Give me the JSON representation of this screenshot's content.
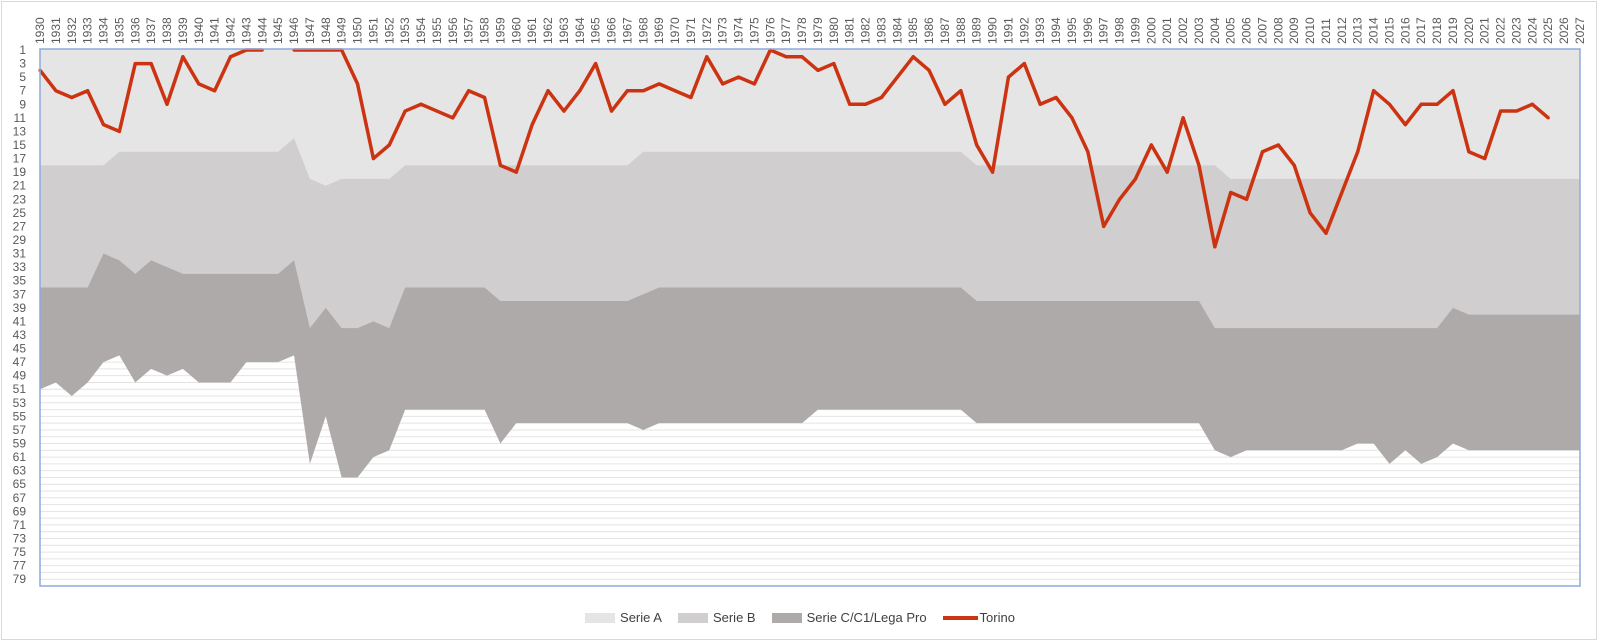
{
  "colors": {
    "serie_a": "#e6e5e5",
    "serie_b": "#d0cece",
    "serie_c": "#aeaaaa",
    "torino": "#cc3311",
    "gridline": "#e4e4e4",
    "axis_border": "#8eaadb",
    "text": "#595959"
  },
  "chart_data": {
    "type": "area",
    "title": "",
    "xlabel": "",
    "ylabel": "",
    "x_tick_labels": [
      1930,
      1931,
      1932,
      1933,
      1934,
      1935,
      1936,
      1937,
      1938,
      1939,
      1940,
      1941,
      1942,
      1943,
      1944,
      1945,
      1946,
      1947,
      1948,
      1949,
      1950,
      1951,
      1952,
      1953,
      1954,
      1955,
      1956,
      1957,
      1958,
      1959,
      1960,
      1961,
      1962,
      1963,
      1964,
      1965,
      1966,
      1967,
      1968,
      1969,
      1970,
      1971,
      1972,
      1973,
      1974,
      1975,
      1976,
      1977,
      1978,
      1979,
      1980,
      1981,
      1982,
      1983,
      1984,
      1985,
      1986,
      1987,
      1988,
      1989,
      1990,
      1991,
      1992,
      1993,
      1994,
      1995,
      1996,
      1997,
      1998,
      1999,
      2000,
      2001,
      2002,
      2003,
      2004,
      2005,
      2006,
      2007,
      2008,
      2009,
      2010,
      2011,
      2012,
      2013,
      2014,
      2015,
      2016,
      2017,
      2018,
      2019,
      2020,
      2021,
      2022,
      2023,
      2024,
      2025,
      2026,
      2027
    ],
    "y_tick_labels": [
      1,
      3,
      5,
      7,
      9,
      11,
      13,
      15,
      17,
      19,
      21,
      23,
      25,
      27,
      29,
      31,
      33,
      35,
      37,
      39,
      41,
      43,
      45,
      47,
      49,
      51,
      53,
      55,
      57,
      59,
      61,
      63,
      65,
      67,
      69,
      71,
      73,
      75,
      77,
      79
    ],
    "y_range": [
      1,
      80
    ],
    "y_reversed": true,
    "grid": true,
    "legend_position": "bottom",
    "series": [
      {
        "name": "Serie A",
        "kind": "area",
        "color_key": "serie_a",
        "values": [
          18,
          18,
          18,
          18,
          18,
          16,
          16,
          16,
          16,
          16,
          16,
          16,
          16,
          16,
          16,
          16,
          14,
          20,
          21,
          20,
          20,
          20,
          20,
          18,
          18,
          18,
          18,
          18,
          18,
          18,
          18,
          18,
          18,
          18,
          18,
          18,
          18,
          18,
          16,
          16,
          16,
          16,
          16,
          16,
          16,
          16,
          16,
          16,
          16,
          16,
          16,
          16,
          16,
          16,
          16,
          16,
          16,
          16,
          16,
          18,
          18,
          18,
          18,
          18,
          18,
          18,
          18,
          18,
          18,
          18,
          18,
          18,
          18,
          18,
          18,
          20,
          20,
          20,
          20,
          20,
          20,
          20,
          20,
          20,
          20,
          20,
          20,
          20,
          20,
          20,
          20,
          20,
          20,
          20,
          20,
          20,
          20,
          20
        ]
      },
      {
        "name": "Serie B",
        "kind": "area",
        "color_key": "serie_b",
        "values": [
          36,
          36,
          36,
          36,
          31,
          32,
          34,
          32,
          33,
          34,
          34,
          34,
          34,
          34,
          34,
          34,
          32,
          42,
          39,
          42,
          42,
          41,
          42,
          36,
          36,
          36,
          36,
          36,
          36,
          38,
          38,
          38,
          38,
          38,
          38,
          38,
          38,
          38,
          37,
          36,
          36,
          36,
          36,
          36,
          36,
          36,
          36,
          36,
          36,
          36,
          36,
          36,
          36,
          36,
          36,
          36,
          36,
          36,
          36,
          38,
          38,
          38,
          38,
          38,
          38,
          38,
          38,
          38,
          38,
          38,
          38,
          38,
          38,
          38,
          42,
          42,
          42,
          42,
          42,
          42,
          42,
          42,
          42,
          42,
          42,
          42,
          42,
          42,
          42,
          39,
          40,
          40,
          40,
          40,
          40,
          40,
          40,
          40
        ]
      },
      {
        "name": "Serie C/C1/Lega Pro",
        "kind": "area",
        "color_key": "serie_c",
        "values": [
          51,
          50,
          52,
          50,
          47,
          46,
          50,
          48,
          49,
          48,
          50,
          50,
          50,
          47,
          47,
          47,
          46,
          62,
          55,
          64,
          64,
          61,
          60,
          54,
          54,
          54,
          54,
          54,
          54,
          59,
          56,
          56,
          56,
          56,
          56,
          56,
          56,
          56,
          57,
          56,
          56,
          56,
          56,
          56,
          56,
          56,
          56,
          56,
          56,
          54,
          54,
          54,
          54,
          54,
          54,
          54,
          54,
          54,
          54,
          56,
          56,
          56,
          56,
          56,
          56,
          56,
          56,
          56,
          56,
          56,
          56,
          56,
          56,
          56,
          60,
          61,
          60,
          60,
          60,
          60,
          60,
          60,
          60,
          59,
          59,
          62,
          60,
          62,
          61,
          59,
          60,
          60,
          60,
          60,
          60,
          60,
          60,
          60
        ]
      },
      {
        "name": "Torino",
        "kind": "line",
        "color_key": "torino",
        "values": [
          4,
          7,
          8,
          7,
          12,
          13,
          3,
          3,
          9,
          2,
          6,
          7,
          2,
          1,
          1,
          null,
          1,
          1,
          1,
          1,
          6,
          17,
          15,
          10,
          9,
          10,
          11,
          7,
          8,
          18,
          19,
          12,
          7,
          10,
          7,
          3,
          10,
          7,
          7,
          6,
          7,
          8,
          2,
          6,
          5,
          6,
          1,
          2,
          2,
          4,
          3,
          9,
          9,
          8,
          5,
          2,
          4,
          9,
          7,
          15,
          19,
          5,
          3,
          9,
          8,
          11,
          16,
          27,
          23,
          20,
          15,
          19,
          11,
          18,
          30,
          22,
          23,
          16,
          15,
          18,
          25,
          28,
          22,
          16,
          7,
          9,
          12,
          9,
          9,
          7,
          16,
          17,
          10,
          10,
          9,
          11,
          null,
          null
        ]
      }
    ]
  }
}
